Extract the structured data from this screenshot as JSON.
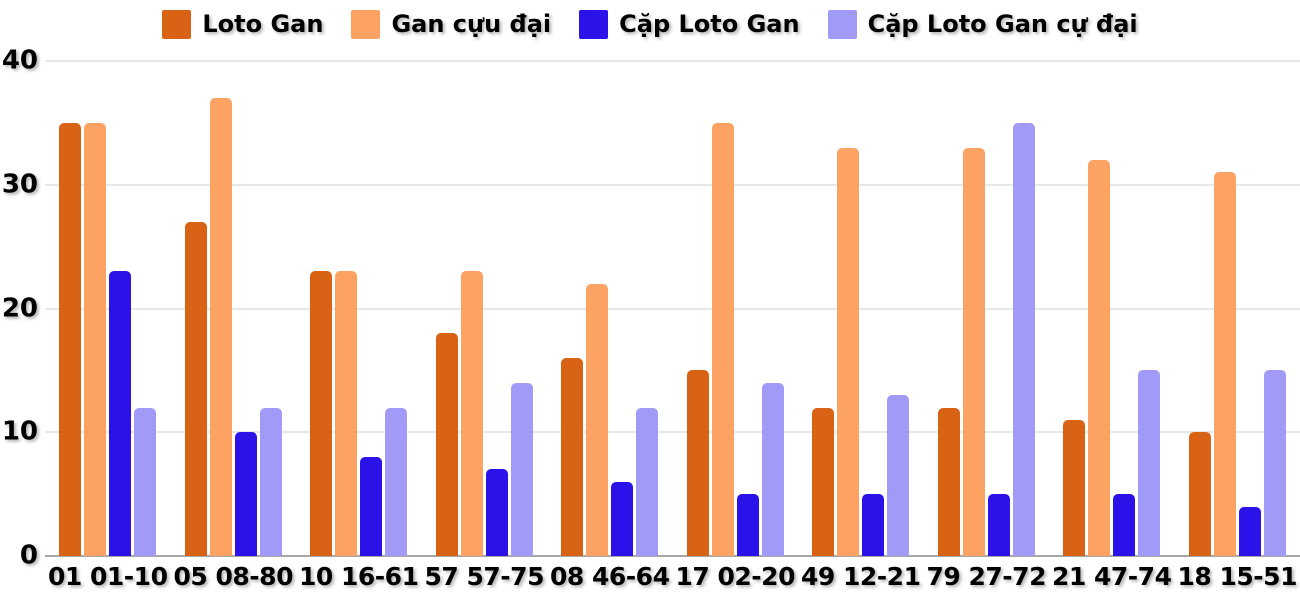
{
  "chart_data": {
    "type": "bar",
    "categories": [
      "01 01-10",
      "05 08-80",
      "10 16-61",
      "57 57-75",
      "08 46-64",
      "17 02-20",
      "49 12-21",
      "79 27-72",
      "21 47-74",
      "18 15-51"
    ],
    "series": [
      {
        "name": "Loto Gan",
        "color": "#D96315",
        "values": [
          35,
          27,
          23,
          18,
          16,
          15,
          12,
          12,
          11,
          10
        ]
      },
      {
        "name": "Gan cựu đại",
        "color": "#FCA364",
        "values": [
          35,
          37,
          23,
          23,
          22,
          35,
          33,
          33,
          32,
          31
        ]
      },
      {
        "name": "Cặp Loto Gan",
        "color": "#2A12E8",
        "values": [
          23,
          10,
          8,
          7,
          6,
          5,
          5,
          5,
          5,
          4
        ]
      },
      {
        "name": "Cặp Loto Gan cự đại",
        "color": "#A29AF7",
        "values": [
          12,
          12,
          12,
          14,
          12,
          14,
          13,
          35,
          15,
          15
        ]
      }
    ],
    "xlabel": "",
    "ylabel": "",
    "ylim": [
      0,
      40
    ],
    "yticks": [
      0,
      10,
      20,
      30,
      40
    ],
    "grid": true,
    "legend_position": "top-center",
    "colors": {
      "gridline": "#E8E8E8",
      "axis_line": "#A6A6A6",
      "label_text": "#000000",
      "background": "#FFFFFF"
    }
  }
}
